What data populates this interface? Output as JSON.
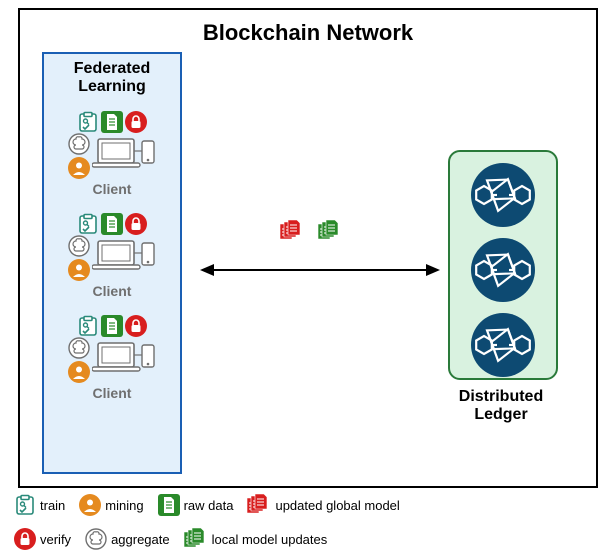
{
  "type": "infographic",
  "title": "Blockchain Network",
  "federated_panel": {
    "title": "Federated\nLearning",
    "bg": "#e3f0fb",
    "border": "#1a5fb4",
    "clients": [
      {
        "label": "Client"
      },
      {
        "label": "Client"
      },
      {
        "label": "Client"
      }
    ]
  },
  "ledger_panel": {
    "label": "Distributed\nLedger",
    "bg": "#d9f2e0",
    "border": "#2a7a3a",
    "node_count": 3,
    "node_fill": "#0d4a72",
    "chain_color": "#ffffff"
  },
  "arrow": {
    "stroke": "#000000",
    "width": 2
  },
  "mid_docs": {
    "red": "#d81e1e",
    "green": "#2a8a2a"
  },
  "icons": {
    "train": {
      "color": "#2a8a7a",
      "glyph": "clipboard"
    },
    "mining": {
      "color": "#e58a1f",
      "glyph": "person"
    },
    "rawdata": {
      "color": "#2a8a2a",
      "glyph": "doc"
    },
    "updated_global": {
      "color": "#d81e1e",
      "glyph": "docs"
    },
    "verify": {
      "color": "#d81e1e",
      "glyph": "lock"
    },
    "aggregate": {
      "color": "#6f6f6f",
      "glyph": "brain"
    },
    "local_updates": {
      "color": "#2a8a2a",
      "glyph": "docs"
    }
  },
  "legend": {
    "items": [
      {
        "key": "train",
        "label": "train"
      },
      {
        "key": "mining",
        "label": "mining"
      },
      {
        "key": "rawdata",
        "label": "raw data"
      },
      {
        "key": "updated_global",
        "label": "updated global model"
      },
      {
        "key": "verify",
        "label": "verify"
      },
      {
        "key": "aggregate",
        "label": "aggregate"
      },
      {
        "key": "local_updates",
        "label": "local model updates"
      }
    ]
  },
  "colors": {
    "client_computer": "#6f6f6f",
    "text_gray": "#6f6f6f",
    "black": "#000000",
    "white": "#ffffff"
  }
}
